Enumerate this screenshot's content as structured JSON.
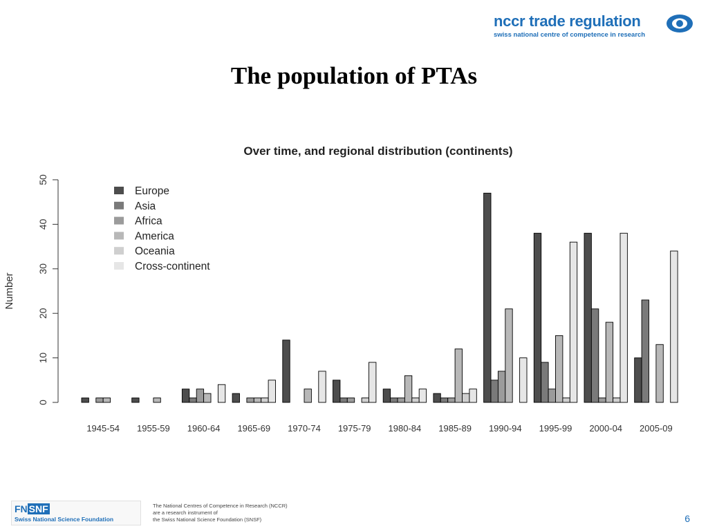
{
  "header": {
    "logo_main": "nccr trade regulation",
    "logo_sub": "swiss national centre of competence in research"
  },
  "slide_title": "The population of PTAs",
  "chart_data": {
    "type": "bar",
    "title": "Over time, and regional distribution (continents)",
    "xlabel": "",
    "ylabel": "Number",
    "ylim": [
      0,
      50
    ],
    "yticks": [
      0,
      10,
      20,
      30,
      40,
      50
    ],
    "grid": false,
    "legend_position": "top-left",
    "categories": [
      "1945-54",
      "1955-59",
      "1960-64",
      "1965-69",
      "1970-74",
      "1975-79",
      "1980-84",
      "1985-89",
      "1990-94",
      "1995-99",
      "2000-04",
      "2005-09"
    ],
    "series": [
      {
        "name": "Europe",
        "color": "#4d4d4d",
        "values": [
          1,
          1,
          3,
          2,
          14,
          5,
          3,
          2,
          47,
          38,
          38,
          10
        ]
      },
      {
        "name": "Asia",
        "color": "#7a7a7a",
        "values": [
          0,
          0,
          1,
          0,
          0,
          1,
          1,
          1,
          5,
          9,
          21,
          23
        ]
      },
      {
        "name": "Africa",
        "color": "#9b9b9b",
        "values": [
          1,
          0,
          3,
          1,
          0,
          1,
          1,
          1,
          7,
          3,
          1,
          0
        ]
      },
      {
        "name": "America",
        "color": "#b8b8b8",
        "values": [
          1,
          1,
          2,
          1,
          3,
          0,
          6,
          12,
          21,
          15,
          18,
          13
        ]
      },
      {
        "name": "Oceania",
        "color": "#cfcfcf",
        "values": [
          0,
          0,
          0,
          1,
          0,
          1,
          1,
          2,
          0,
          1,
          1,
          0
        ]
      },
      {
        "name": "Cross-continent",
        "color": "#e6e6e6",
        "values": [
          0,
          0,
          4,
          5,
          7,
          9,
          3,
          3,
          10,
          36,
          38,
          34
        ]
      }
    ]
  },
  "footer": {
    "logo_fn": "FN",
    "logo_snf": "SNF",
    "logo_sub": "Swiss National Science Foundation",
    "lines": [
      "The National Centres of Competence in Research (NCCR)",
      "are a research instrument of",
      "the Swiss National Science Foundation (SNSF)"
    ],
    "page_number": "6"
  }
}
